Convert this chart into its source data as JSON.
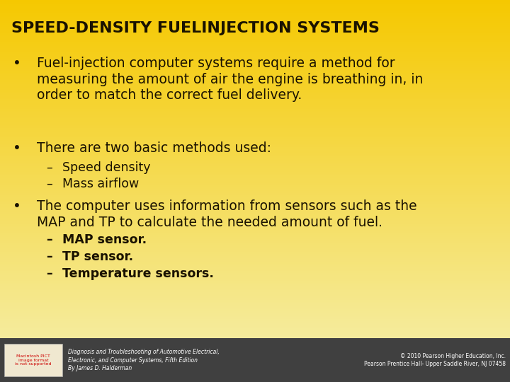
{
  "title": "SPEED-DENSITY FUELINJECTION SYSTEMS",
  "background_top": "#F5C800",
  "background_bottom": "#F5F0B0",
  "footer_bg": "#404040",
  "title_color": "#1a1200",
  "text_color": "#1a1200",
  "bullet1_line1": "Fuel-injection computer systems require a method for",
  "bullet1_line2": "measuring the amount of air the engine is breathing in, in",
  "bullet1_line3": "order to match the correct fuel delivery.",
  "bullet2_line1": "There are two basic methods used:",
  "sub1": "Speed density",
  "sub2": "Mass airflow",
  "bullet3_line1": "The computer uses information from sensors such as the",
  "bullet3_line2": "MAP and TP to calculate the needed amount of fuel.",
  "subsub1": "MAP sensor.",
  "subsub2": "TP sensor.",
  "subsub3": "Temperature sensors.",
  "footer_left1": "Diagnosis and Troubleshooting of Automotive Electrical,",
  "footer_left2": "Electronic, and Computer Systems, Fifth Edition",
  "footer_left3": "By James D. Halderman",
  "footer_right1": "© 2010 Pearson Higher Education, Inc.",
  "footer_right2": "Pearson Prentice Hall- Upper Saddle River, NJ 07458",
  "fig_width": 7.2,
  "fig_height": 5.4,
  "dpi": 100
}
